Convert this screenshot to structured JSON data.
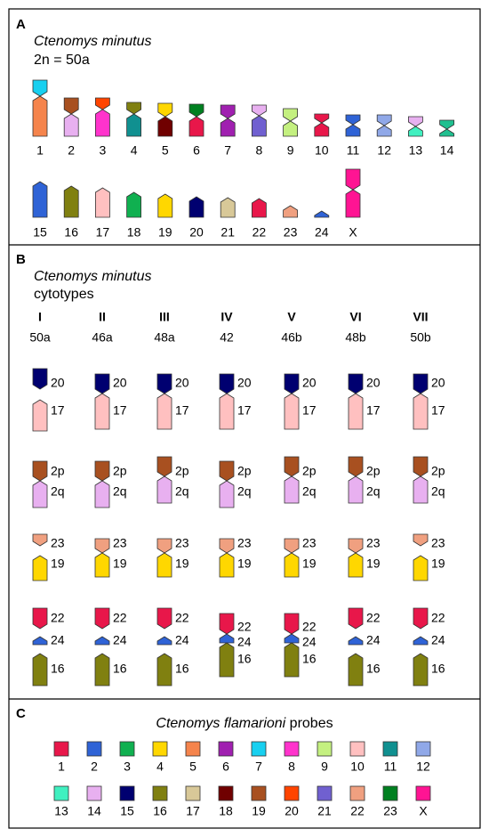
{
  "panel_a": {
    "label": "A",
    "species": "Ctenomys minutus",
    "subtitle": "2n = 50a",
    "row1": [
      {
        "label": "1",
        "colors": [
          "#18d0f0",
          "#f5844c"
        ]
      },
      {
        "label": "2",
        "colors": [
          "#a85020",
          "#e8b0f0"
        ]
      },
      {
        "label": "3",
        "colors": [
          "#ff4400",
          "#ff33cc"
        ]
      },
      {
        "label": "4",
        "colors": [
          "#808010",
          "#109090"
        ]
      },
      {
        "label": "5",
        "colors": [
          "#ffd700",
          "#700000"
        ]
      },
      {
        "label": "6",
        "colors": [
          "#008020",
          "#e8174a"
        ]
      },
      {
        "label": "7",
        "colors": [
          "#a020b0",
          "#a020b0"
        ]
      },
      {
        "label": "8",
        "colors": [
          "#e8b0f0",
          "#7060d0"
        ]
      },
      {
        "label": "9",
        "colors": [
          "#c4f080",
          "#c4f080"
        ]
      },
      {
        "label": "10",
        "colors": [
          "#e8174a",
          "#e8174a"
        ]
      },
      {
        "label": "11",
        "colors": [
          "#2f63d6",
          "#2f63d6"
        ]
      },
      {
        "label": "12",
        "colors": [
          "#90a8e8",
          "#90a8e8"
        ]
      },
      {
        "label": "13",
        "colors": [
          "#e8b0f0",
          "#40f0c0"
        ]
      },
      {
        "label": "14",
        "colors": [
          "#20c090",
          "#20c090"
        ]
      }
    ],
    "row2": [
      {
        "label": "15",
        "colors": [
          "#2f63d6"
        ]
      },
      {
        "label": "16",
        "colors": [
          "#808010"
        ]
      },
      {
        "label": "17",
        "colors": [
          "#ffc0c0"
        ]
      },
      {
        "label": "18",
        "colors": [
          "#10b050"
        ]
      },
      {
        "label": "19",
        "colors": [
          "#ffd700"
        ]
      },
      {
        "label": "20",
        "colors": [
          "#000070"
        ]
      },
      {
        "label": "21",
        "colors": [
          "#d8c898"
        ]
      },
      {
        "label": "22",
        "colors": [
          "#e8174a"
        ]
      },
      {
        "label": "23",
        "colors": [
          "#f0a080"
        ]
      },
      {
        "label": "24",
        "colors": [
          "#2f63d6"
        ]
      },
      {
        "label": "X",
        "colors": [
          "#ff1493",
          "#ff1493"
        ]
      }
    ]
  },
  "panel_b": {
    "label": "B",
    "species": "Ctenomys minutus",
    "subtitle": "cytotypes",
    "chromosome_colors": [
      "#000070",
      "#ffc0c0",
      "#a85020",
      "#e8b0f0",
      "#f0a080",
      "#ffd700",
      "#e8174a",
      "#2f63d6",
      "#808010"
    ],
    "cytotypes": [
      {
        "name": "I",
        "karyotype": "50a",
        "labels": [
          "20",
          "17",
          "2p",
          "2q",
          "23",
          "19",
          "22",
          "24",
          "16"
        ]
      },
      {
        "name": "II",
        "karyotype": "46a",
        "labels": [
          "20",
          "17",
          "2p",
          "2q",
          "23",
          "19",
          "22",
          "24",
          "16"
        ]
      },
      {
        "name": "III",
        "karyotype": "48a",
        "labels": [
          "20",
          "17",
          "2p",
          "2q",
          "23",
          "19",
          "22",
          "24",
          "16"
        ]
      },
      {
        "name": "IV",
        "karyotype": "42",
        "labels": [
          "20",
          "17",
          "2p",
          "2q",
          "23",
          "19",
          "22",
          "24",
          "16"
        ]
      },
      {
        "name": "V",
        "karyotype": "46b",
        "labels": [
          "20",
          "17",
          "2p",
          "2q",
          "23",
          "19",
          "22",
          "24",
          "16"
        ]
      },
      {
        "name": "VI",
        "karyotype": "48b",
        "labels": [
          "20",
          "17",
          "2p",
          "2q",
          "23",
          "19",
          "22",
          "24",
          "16"
        ]
      },
      {
        "name": "VII",
        "karyotype": "50b",
        "labels": [
          "20",
          "17",
          "2p",
          "2q",
          "23",
          "19",
          "22",
          "24",
          "16"
        ]
      }
    ]
  },
  "panel_c": {
    "label": "C",
    "title_species": "Ctenomys flamarioni",
    "title_rest": "probes",
    "probes": [
      {
        "label": "1",
        "color": "#e8174a"
      },
      {
        "label": "2",
        "color": "#2f63d6"
      },
      {
        "label": "3",
        "color": "#10b050"
      },
      {
        "label": "4",
        "color": "#ffd700"
      },
      {
        "label": "5",
        "color": "#f5844c"
      },
      {
        "label": "6",
        "color": "#a020b0"
      },
      {
        "label": "7",
        "color": "#18d0f0"
      },
      {
        "label": "8",
        "color": "#ff33cc"
      },
      {
        "label": "9",
        "color": "#c4f080"
      },
      {
        "label": "10",
        "color": "#ffc0c0"
      },
      {
        "label": "11",
        "color": "#109090"
      },
      {
        "label": "12",
        "color": "#90a8e8"
      },
      {
        "label": "13",
        "color": "#40f0c0"
      },
      {
        "label": "14",
        "color": "#e8b0f0"
      },
      {
        "label": "15",
        "color": "#000070"
      },
      {
        "label": "16",
        "color": "#808010"
      },
      {
        "label": "17",
        "color": "#d8c898"
      },
      {
        "label": "18",
        "color": "#700000"
      },
      {
        "label": "19",
        "color": "#a85020"
      },
      {
        "label": "20",
        "color": "#ff4400"
      },
      {
        "label": "21",
        "color": "#7060d0"
      },
      {
        "label": "22",
        "color": "#f0a080"
      },
      {
        "label": "23",
        "color": "#008020"
      },
      {
        "label": "X",
        "color": "#ff1493"
      }
    ]
  }
}
